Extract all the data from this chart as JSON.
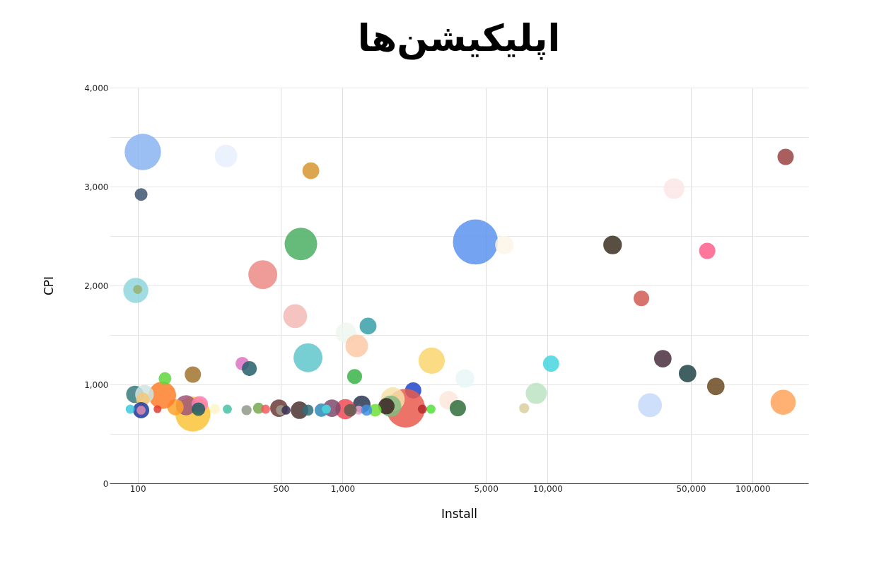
{
  "chart_data": {
    "type": "bubble",
    "title": "اپلیکیشن‌ها",
    "xlabel": "Install",
    "ylabel": "CPI",
    "log": "x",
    "grid": true,
    "legend": false,
    "xlim": [
      73,
      187000
    ],
    "xticks": [
      100,
      500,
      {
        "value": 1000,
        "label": "1,000"
      },
      {
        "value": 5000,
        "label": "5,000"
      },
      {
        "value": 10000,
        "label": "10,000"
      },
      {
        "value": 50000,
        "label": "50,000"
      },
      {
        "value": 100000,
        "label": "100,000"
      }
    ],
    "ylim": [
      0,
      4000
    ],
    "yticks": [
      0,
      {
        "value": 500,
        "label": null
      },
      {
        "value": 1000,
        "label": "1,000"
      },
      {
        "value": 1500,
        "label": null
      },
      {
        "value": 2000,
        "label": "2,000"
      },
      {
        "value": 2500,
        "label": null
      },
      {
        "value": 3000,
        "label": "3,000"
      },
      {
        "value": 3500,
        "label": null
      },
      {
        "value": 4000,
        "label": "4,000"
      }
    ],
    "x": [
      106,
      104,
      270,
      700,
      626,
      408,
      98,
      100,
      587,
      1040,
      1331,
      1172,
      678,
      2720,
      324,
      351,
      4450,
      6160,
      20760,
      41400,
      145000,
      60100,
      28700,
      36500,
      48200,
      66200,
      141000,
      31600,
      10400,
      8810,
      7690,
      3950,
      3290,
      3650,
      2210,
      2030,
      1757,
      1716,
      1636,
      2700,
      2450,
      1145,
      1240,
      1032,
      887,
      788,
      834,
      1442,
      1200,
      1310,
      1091,
      616,
      678,
      489,
      501,
      530,
      389,
      421,
      340,
      274,
      238,
      186,
      172,
      201,
      198,
      153,
      132,
      125,
      136,
      186,
      97,
      108,
      106,
      104,
      104,
      92
    ],
    "values": [
      3350,
      2920,
      3310,
      3160,
      2420,
      2110,
      1950,
      1960,
      1690,
      1520,
      1590,
      1390,
      1270,
      1240,
      1210,
      1160,
      2440,
      2410,
      2410,
      2980,
      3300,
      2350,
      1870,
      1260,
      1110,
      980,
      820,
      790,
      1210,
      910,
      760,
      1060,
      840,
      760,
      940,
      760,
      850,
      780,
      780,
      750,
      750,
      1080,
      800,
      750,
      760,
      740,
      750,
      740,
      740,
      740,
      740,
      740,
      740,
      760,
      740,
      740,
      760,
      750,
      740,
      750,
      750,
      700,
      790,
      800,
      750,
      770,
      890,
      750,
      1060,
      1100,
      900,
      900,
      850,
      740,
      740,
      750
    ],
    "sizes": [
      0.65,
      0.08,
      0.25,
      0.14,
      0.52,
      0.41,
      0.31,
      0.04,
      0.28,
      0.21,
      0.14,
      0.25,
      0.41,
      0.34,
      0.09,
      0.11,
      1,
      0.17,
      0.17,
      0.21,
      0.13,
      0.13,
      0.12,
      0.15,
      0.15,
      0.15,
      0.31,
      0.28,
      0.13,
      0.22,
      0.05,
      0.17,
      0.17,
      0.13,
      0.13,
      0.74,
      0.28,
      0.22,
      0.13,
      0.04,
      0.04,
      0.11,
      0.15,
      0.2,
      0.15,
      0.09,
      0.04,
      0.08,
      0.04,
      0.06,
      0.08,
      0.15,
      0.06,
      0.15,
      0.05,
      0.04,
      0.06,
      0.04,
      0.05,
      0.04,
      0.05,
      0.6,
      0.2,
      0.13,
      0.09,
      0.13,
      0.37,
      0.03,
      0.08,
      0.13,
      0.15,
      0.17,
      0.09,
      0.13,
      0.04,
      0.04
    ],
    "colors": [
      "#8ab4f0",
      "#3d5570",
      "#e8f0fd",
      "#d69530",
      "#4caf63",
      "#ec8a85",
      "#8fd6dc",
      "#98b070",
      "#f3b9b5",
      "#eef6ee",
      "#37a0a8",
      "#fdc9a6",
      "#5fc6cb",
      "#fad56f",
      "#dc72c4",
      "#245f6a",
      "#5b93ee",
      "#fdf5e6",
      "#3b2f20",
      "#fbe6e6",
      "#9b4343",
      "#ff5e8b",
      "#d05c52",
      "#4a2f40",
      "#1e4447",
      "#6b4a22",
      "#ffa25a",
      "#c5d9fb",
      "#45d6e0",
      "#bde3c3",
      "#d9cf9f",
      "#e9f6f7",
      "#fde6dc",
      "#2f6e3b",
      "#2146c9",
      "#e85a4e",
      "#f6e0a9",
      "#82bb80",
      "#3a2525",
      "#55e03a",
      "#b52a2a",
      "#38b348",
      "#2a3650",
      "#f04b57",
      "#7f4a6e",
      "#2f8bb8",
      "#49dbe0",
      "#6ede3a",
      "#e9a4cc",
      "#3f90e2",
      "#5a5a4e",
      "#4b3232",
      "#2f6f7a",
      "#6f3a3a",
      "#9f9f8c",
      "#3a2f55",
      "#78a852",
      "#f35b5b",
      "#8f9988",
      "#45c1a4",
      "#fdf5c6",
      "#fbc438",
      "#9d5577",
      "#ff7ab0",
      "#1a5e60",
      "#ffa22c",
      "#ff7f2a",
      "#e43b30",
      "#5fd640",
      "#a0732e",
      "#3a7a7e",
      "#cfe4e2",
      "#f2c878",
      "#1f3a9a",
      "#e08ab0",
      "#3dc9dd"
    ]
  }
}
